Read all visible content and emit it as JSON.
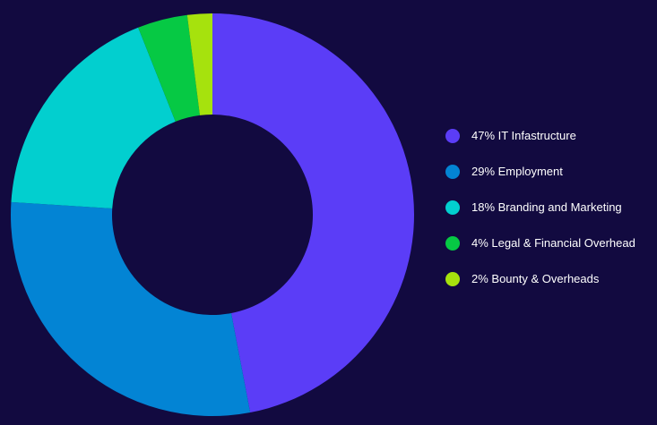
{
  "chart_data": {
    "type": "pie",
    "variant": "donut",
    "legend_position": "right",
    "slices": [
      {
        "label": "47% IT Infastructure",
        "value": 47,
        "color": "#5b3df7"
      },
      {
        "label": "29% Employment",
        "value": 29,
        "color": "#0384d4"
      },
      {
        "label": "18% Branding and Marketing",
        "value": 18,
        "color": "#02cfcf"
      },
      {
        "label": "4% Legal & Financial Overhead",
        "value": 4,
        "color": "#06c944"
      },
      {
        "label": "2% Bounty & Overheads",
        "value": 2,
        "color": "#a6e20d"
      }
    ]
  }
}
